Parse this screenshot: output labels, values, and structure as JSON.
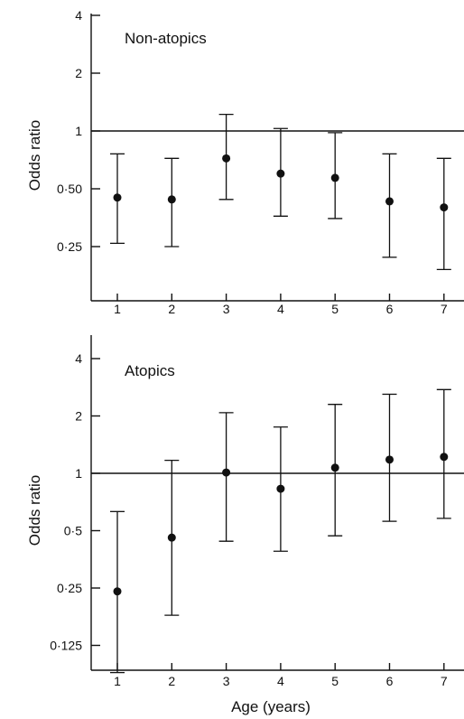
{
  "chart_data": [
    {
      "type": "scatter",
      "panel_label": "Non-atopics",
      "ylabel": "Odds ratio",
      "xlabel": "",
      "yscale": "log",
      "x_ticks": [
        "1",
        "2",
        "3",
        "4",
        "5",
        "6",
        "7"
      ],
      "y_ticks": [
        {
          "value": 0.25,
          "label": "0·25"
        },
        {
          "value": 0.5,
          "label": "0·50"
        },
        {
          "value": 1,
          "label": "1"
        },
        {
          "value": 2,
          "label": "2"
        },
        {
          "value": 4,
          "label": "4"
        }
      ],
      "ylim": [
        0.15,
        4
      ],
      "reference_line": 1,
      "points": [
        {
          "x": 1,
          "y": 0.45,
          "lower": 0.26,
          "upper": 0.76
        },
        {
          "x": 2,
          "y": 0.44,
          "lower": 0.25,
          "upper": 0.72
        },
        {
          "x": 3,
          "y": 0.72,
          "lower": 0.44,
          "upper": 1.22
        },
        {
          "x": 4,
          "y": 0.6,
          "lower": 0.36,
          "upper": 1.03
        },
        {
          "x": 5,
          "y": 0.57,
          "lower": 0.35,
          "upper": 0.98
        },
        {
          "x": 6,
          "y": 0.43,
          "lower": 0.22,
          "upper": 0.76
        },
        {
          "x": 7,
          "y": 0.4,
          "lower": 0.19,
          "upper": 0.72
        }
      ]
    },
    {
      "type": "scatter",
      "panel_label": "Atopics",
      "ylabel": "Odds ratio",
      "xlabel": "Age (years)",
      "yscale": "log",
      "x_ticks": [
        "1",
        "2",
        "3",
        "4",
        "5",
        "6",
        "7"
      ],
      "y_ticks": [
        {
          "value": 0.125,
          "label": "0·125"
        },
        {
          "value": 0.25,
          "label": "0·25"
        },
        {
          "value": 0.5,
          "label": "0·5"
        },
        {
          "value": 1,
          "label": "1"
        },
        {
          "value": 2,
          "label": "2"
        },
        {
          "value": 4,
          "label": "4"
        }
      ],
      "ylim": [
        0.09,
        5
      ],
      "reference_line": 1,
      "points": [
        {
          "x": 1,
          "y": 0.24,
          "lower": 0.09,
          "upper": 0.63
        },
        {
          "x": 2,
          "y": 0.46,
          "lower": 0.18,
          "upper": 1.17
        },
        {
          "x": 3,
          "y": 1.01,
          "lower": 0.44,
          "upper": 2.08
        },
        {
          "x": 4,
          "y": 0.83,
          "lower": 0.39,
          "upper": 1.75
        },
        {
          "x": 5,
          "y": 1.07,
          "lower": 0.47,
          "upper": 2.3
        },
        {
          "x": 6,
          "y": 1.18,
          "lower": 0.56,
          "upper": 2.6
        },
        {
          "x": 7,
          "y": 1.22,
          "lower": 0.58,
          "upper": 2.75
        }
      ]
    }
  ]
}
